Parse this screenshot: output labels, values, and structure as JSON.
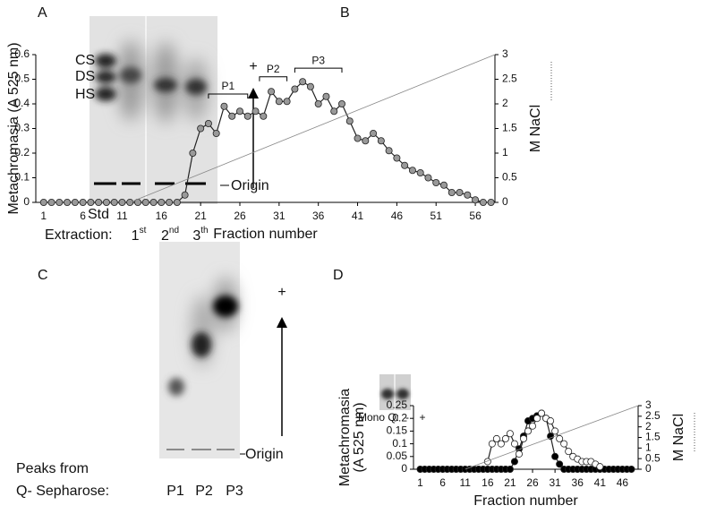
{
  "chart_data": [
    {
      "type": "line",
      "panel": "B",
      "ylabel": [
        "Metachromasia (A 525 nm)"
      ],
      "y2label": "M NaCl",
      "xlabel": "Fraction number",
      "xlim": [
        0,
        58.5
      ],
      "xticks": [
        1,
        6,
        11,
        16,
        21,
        26,
        31,
        36,
        41,
        46,
        51,
        56
      ],
      "ylim": [
        0,
        0.6
      ],
      "yticks": [
        0,
        0.1,
        0.2,
        0.3,
        0.4,
        0.5,
        0.6
      ],
      "y2lim": [
        0,
        3
      ],
      "y2ticks": [
        0,
        0.5,
        1,
        1.5,
        2,
        2.5,
        3
      ],
      "series": [
        {
          "color": "#999999",
          "marker": "filled",
          "x": [
            1,
            2,
            3,
            4,
            5,
            6,
            7,
            8,
            9,
            10,
            11,
            12,
            13,
            14,
            15,
            16,
            17,
            18,
            19,
            20,
            21,
            22,
            23,
            24,
            25,
            26,
            27,
            28,
            29,
            30,
            31,
            32,
            33,
            34,
            35,
            36,
            37,
            38,
            39,
            40,
            41,
            42,
            43,
            44,
            45,
            46,
            47,
            48,
            49,
            50,
            51,
            52,
            53,
            54,
            55,
            56,
            57,
            58
          ],
          "values": [
            0,
            0,
            0,
            0,
            0,
            0,
            0,
            0,
            0,
            0,
            0,
            0,
            0,
            0,
            0,
            0,
            0,
            0,
            0.03,
            0.2,
            0.3,
            0.32,
            0.28,
            0.39,
            0.35,
            0.37,
            0.35,
            0.37,
            0.35,
            0.45,
            0.41,
            0.41,
            0.46,
            0.49,
            0.47,
            0.4,
            0.43,
            0.37,
            0.4,
            0.33,
            0.26,
            0.25,
            0.28,
            0.25,
            0.21,
            0.18,
            0.15,
            0.13,
            0.12,
            0.1,
            0.08,
            0.07,
            0.04,
            0.04,
            0.03,
            0.01,
            0,
            0
          ]
        },
        {
          "color": "#888888",
          "marker": "none",
          "axis": "y2",
          "x": [
            12,
            58.5
          ],
          "values": [
            0,
            3
          ]
        }
      ],
      "annotations": [
        {
          "text": "P1",
          "x": [
            22,
            27
          ],
          "y": 0.44
        },
        {
          "text": "P2",
          "x": [
            28.5,
            32
          ],
          "y": 0.51
        },
        {
          "text": "P3",
          "x": [
            33,
            39
          ],
          "y": 0.545
        }
      ]
    },
    {
      "type": "line",
      "panel": "D",
      "ylabel": [
        "Metachromasia",
        "(A 525 nm)"
      ],
      "y2label": "M NaCl",
      "xlabel": "Fraction number",
      "xlim": [
        -0.5,
        49.5
      ],
      "xticks": [
        1,
        6,
        11,
        16,
        21,
        26,
        31,
        36,
        41,
        46
      ],
      "ylim": [
        0,
        0.25
      ],
      "yticks": [
        0,
        0.05,
        0.1,
        0.15,
        0.2,
        0.25
      ],
      "y2lim": [
        0,
        3
      ],
      "y2ticks": [
        0,
        0.5,
        1,
        1.5,
        2,
        2.5,
        3
      ],
      "inset": {
        "label": "Mono Q:",
        "lanes": [
          "-",
          "+"
        ]
      },
      "series": [
        {
          "color": "#000000",
          "marker": "filled",
          "x": [
            1,
            2,
            3,
            4,
            5,
            6,
            7,
            8,
            9,
            10,
            11,
            12,
            13,
            14,
            15,
            16,
            17,
            18,
            19,
            20,
            21,
            22,
            23,
            24,
            25,
            26,
            27,
            28,
            29,
            30,
            31,
            32,
            33,
            34,
            35,
            36,
            37,
            38,
            39,
            40,
            41,
            42,
            43,
            44,
            45,
            46,
            47,
            48
          ],
          "values": [
            0,
            0,
            0,
            0,
            0,
            0,
            0,
            0,
            0,
            0,
            0,
            0,
            0,
            0,
            0,
            0,
            0,
            0,
            0,
            0,
            0,
            0.03,
            0.08,
            0.13,
            0.19,
            0.2,
            0.21,
            0.22,
            0.2,
            0.13,
            0.05,
            0.02,
            0,
            0,
            0,
            0,
            0,
            0,
            0,
            0,
            0,
            0,
            0,
            0,
            0,
            0,
            0,
            0
          ]
        },
        {
          "color": "#ffffff",
          "marker": "open",
          "x": [
            16,
            17,
            18,
            19,
            20,
            21,
            22,
            23,
            24,
            25,
            26,
            27,
            28,
            29,
            30,
            31,
            32,
            33,
            34,
            35,
            36,
            37,
            38,
            39,
            40,
            41
          ],
          "values": [
            0.03,
            0.1,
            0.12,
            0.1,
            0.12,
            0.14,
            0.1,
            0.06,
            0.12,
            0.15,
            0.17,
            0.2,
            0.22,
            0.2,
            0.19,
            0.15,
            0.12,
            0.1,
            0.07,
            0.05,
            0.04,
            0.03,
            0.03,
            0.03,
            0.02,
            0.01
          ]
        },
        {
          "color": "#888888",
          "marker": "none",
          "axis": "y2",
          "x": [
            11,
            49.5
          ],
          "values": [
            0,
            3
          ]
        }
      ],
      "annotations": []
    }
  ],
  "gel_a": {
    "panel": "A",
    "bands": [
      "CS",
      "DS",
      "HS"
    ],
    "polarity": "+",
    "origin": "Origin",
    "std": "Std",
    "extraction": "Extraction:",
    "lanes": [
      {
        "base": "1",
        "sup": "st"
      },
      {
        "base": "2",
        "sup": "nd"
      },
      {
        "base": "3",
        "sup": "th"
      }
    ]
  },
  "gel_c": {
    "panel": "C",
    "polarity": "+",
    "origin": "Origin",
    "caption": [
      "Peaks from",
      "Q- Sepharose:"
    ],
    "lanes": [
      "P1",
      "P2",
      "P3"
    ]
  }
}
